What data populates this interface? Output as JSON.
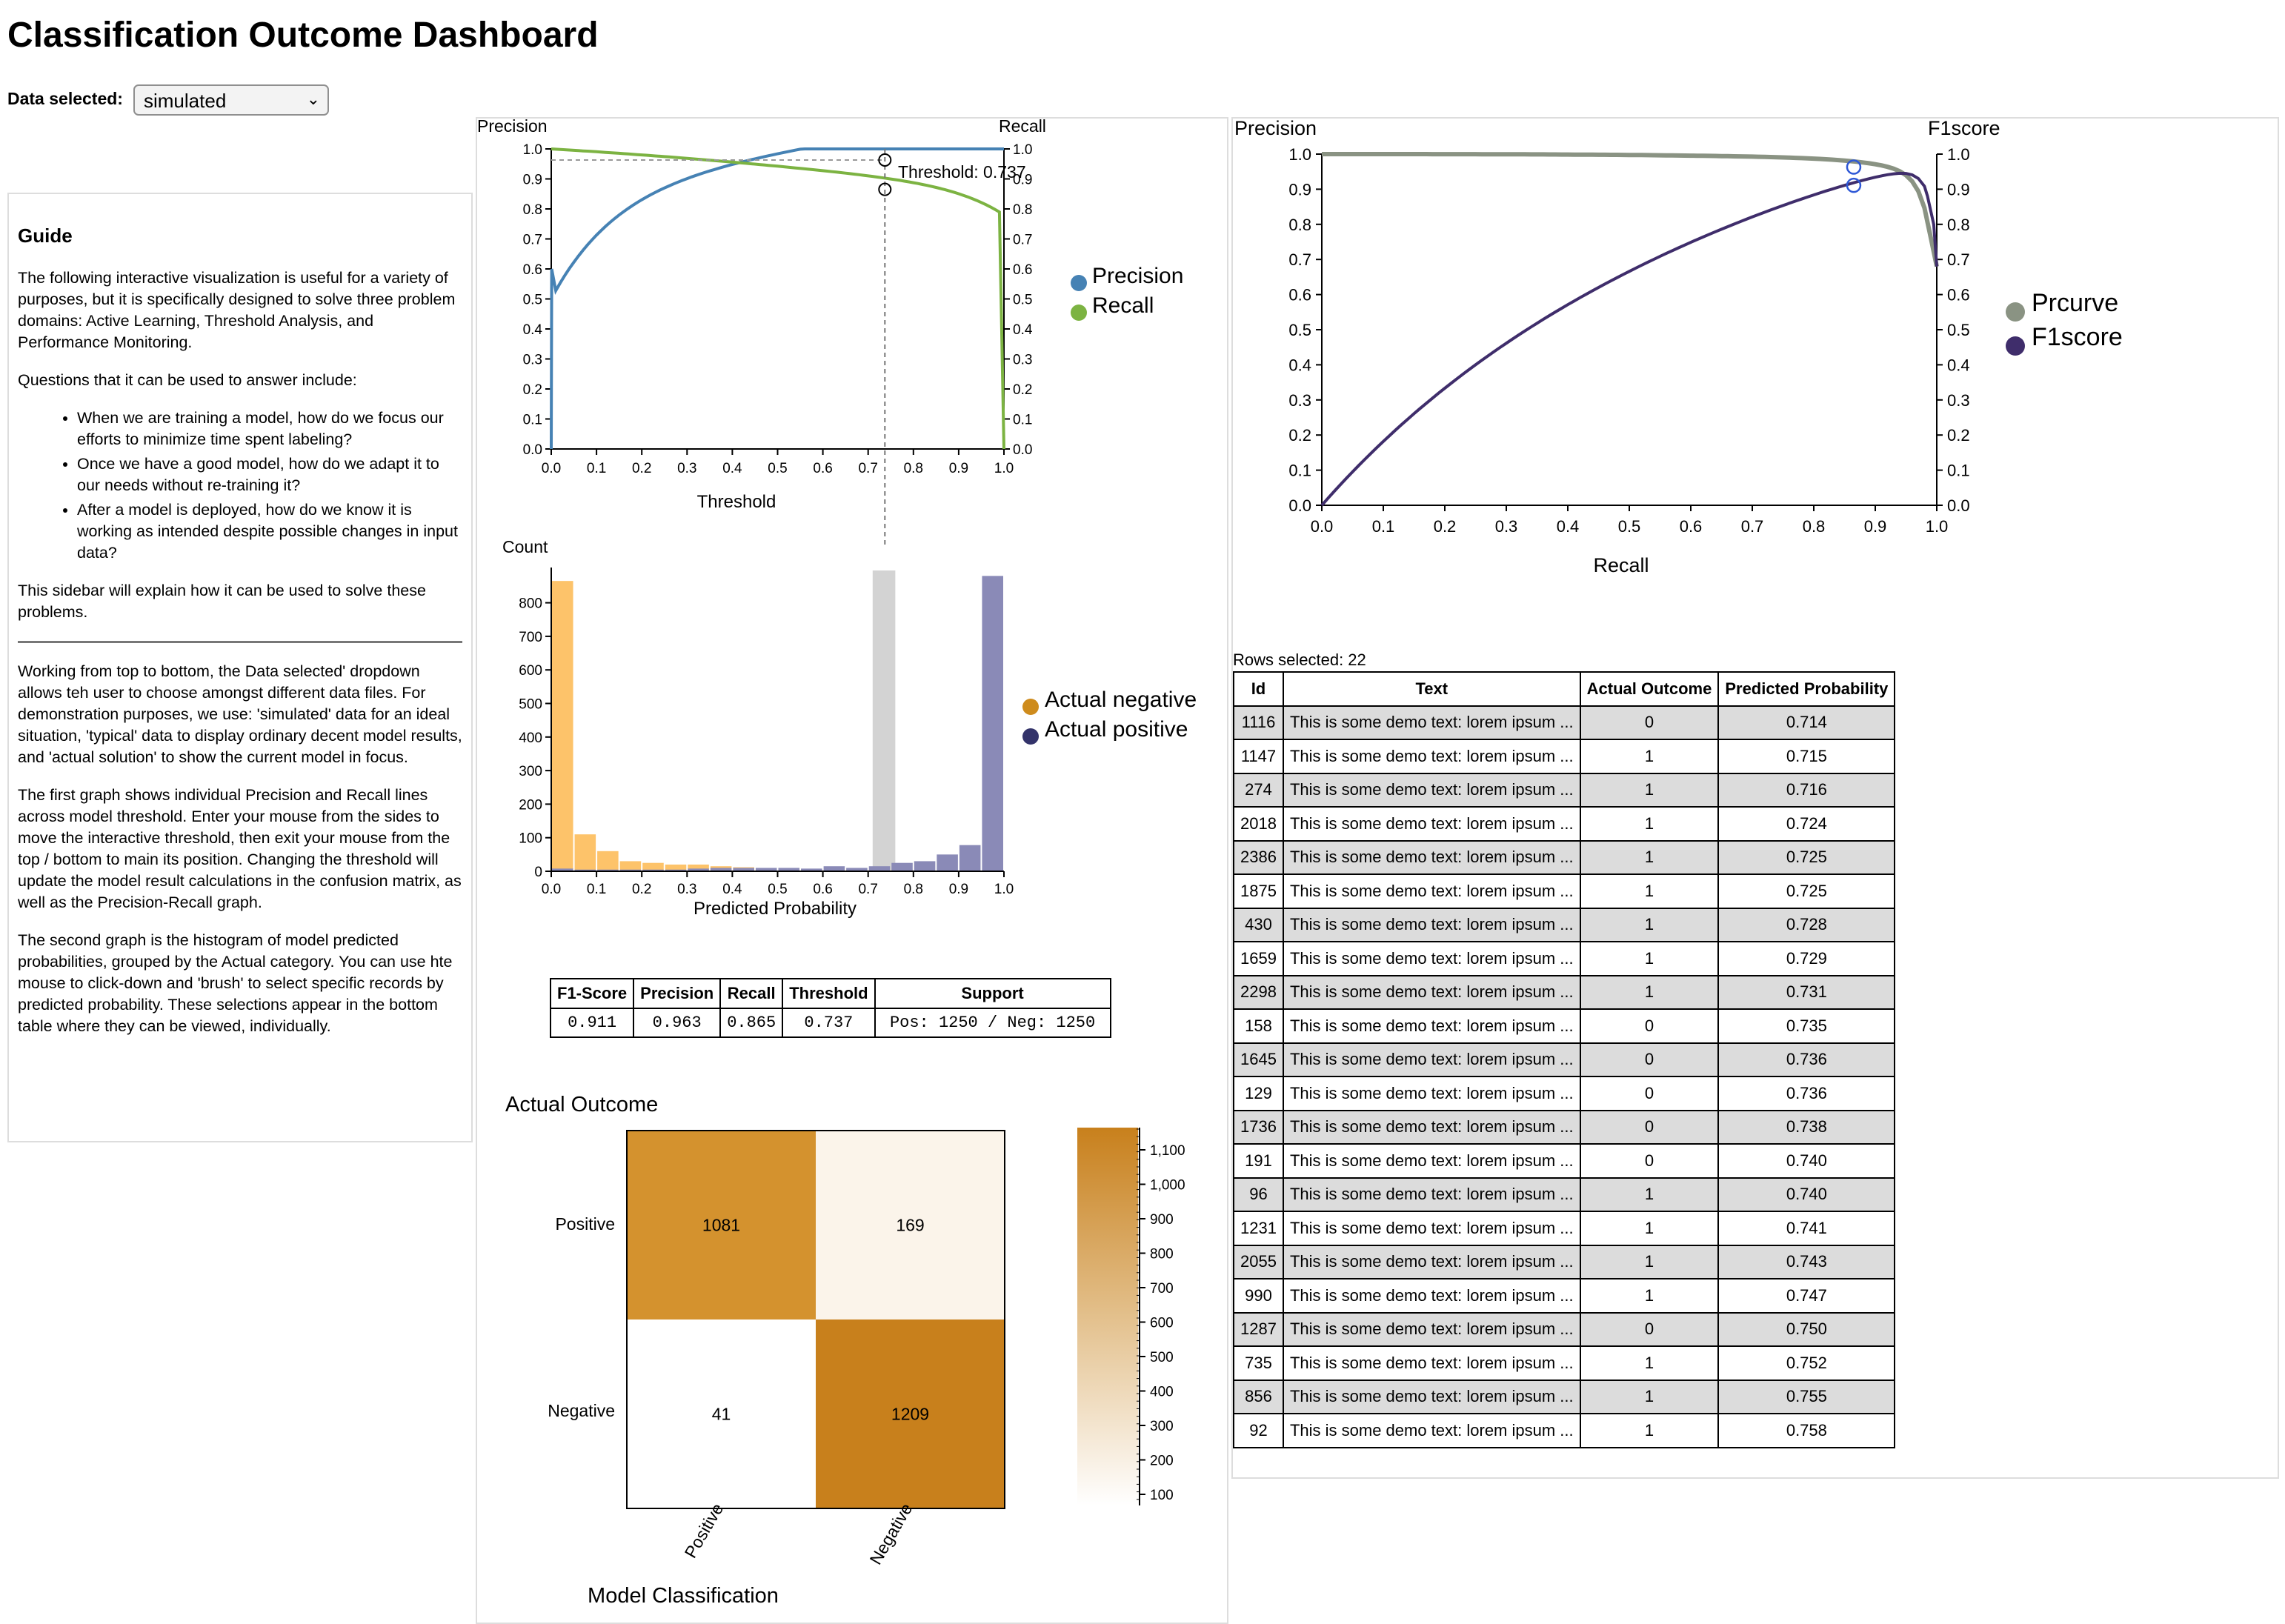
{
  "title": "Classification Outcome Dashboard",
  "data_select": {
    "label": "Data selected:",
    "value": "simulated"
  },
  "guide": {
    "heading": "Guide",
    "intro": "The following interactive visualization is useful for a variety of purposes, but it is specifically designed to solve three problem domains: Active Learning, Threshold Analysis, and Performance Monitoring.",
    "questions_intro": "Questions that it can be used to answer include:",
    "questions": [
      "When we are training a model, how do we focus our efforts to minimize time spent labeling?",
      "Once we have a good model, how do we adapt it to our needs without re-training it?",
      "After a model is deployed, how do we know it is working as intended despite possible changes in input data?"
    ],
    "sidebar_note": "This sidebar will explain how it can be used to solve these problems.",
    "p1": "Working from top to bottom, the Data selected' dropdown allows teh user to choose amongst different data files. For demonstration purposes, we use: 'simulated' data for an ideal situation, 'typical' data to display ordinary decent model results, and 'actual solution' to show the current model in focus.",
    "p2": "The first graph shows individual Precision and Recall lines across model threshold. Enter your mouse from the sides to move the interactive threshold, then exit your mouse from the top / bottom to main its position. Changing the threshold will update the model result calculations in the confusion matrix, as well as the Precision-Recall graph.",
    "p3": "The second graph is the histogram of model predicted probabilities, grouped by the Actual category. You can use hte mouse to click-down and 'brush' to select specific records by predicted probability. These selections appear in the bottom table where they can be viewed, individually."
  },
  "threshold_chart": {
    "ylabel_left": "Precision",
    "ylabel_right": "Recall",
    "xlabel": "Threshold",
    "ticks": [
      "0.0",
      "0.1",
      "0.2",
      "0.3",
      "0.4",
      "0.5",
      "0.6",
      "0.7",
      "0.8",
      "0.9",
      "1.0"
    ],
    "threshold_label": "Threshold: 0.737",
    "threshold": 0.737,
    "legend": [
      "Precision",
      "Recall"
    ],
    "colors": {
      "precision": "#4682b4",
      "recall": "#7cb342"
    }
  },
  "histogram": {
    "ylabel": "Count",
    "xlabel": "Predicted Probability",
    "yticks": [
      "0",
      "100",
      "200",
      "300",
      "400",
      "500",
      "600",
      "700",
      "800"
    ],
    "xticks": [
      "0.0",
      "0.1",
      "0.2",
      "0.3",
      "0.4",
      "0.5",
      "0.6",
      "0.7",
      "0.8",
      "0.9",
      "1.0"
    ],
    "legend": [
      "Actual negative",
      "Actual positive"
    ],
    "colors": {
      "negative": "#fdc36a",
      "positive": "#8a8ab7",
      "brush": "#d3d3d3"
    }
  },
  "metrics": {
    "headers": [
      "F1-Score",
      "Precision",
      "Recall",
      "Threshold",
      "Support"
    ],
    "values": [
      "0.911",
      "0.963",
      "0.865",
      "0.737",
      "Pos: 1250 / Neg: 1250"
    ]
  },
  "confusion": {
    "title": "Actual Outcome",
    "xlabel": "Model Classification",
    "row_labels": [
      "Positive",
      "Negative"
    ],
    "col_labels": [
      "Positive",
      "Negative"
    ],
    "cells": [
      [
        "1081",
        "169"
      ],
      [
        "41",
        "1209"
      ]
    ],
    "scale_ticks": [
      "1,100",
      "1,000",
      "900",
      "800",
      "700",
      "600",
      "500",
      "400",
      "300",
      "200",
      "100"
    ]
  },
  "pr_chart": {
    "ylabel_left": "Precision",
    "ylabel_right": "F1score",
    "xlabel": "Recall",
    "ticks": [
      "0.0",
      "0.1",
      "0.2",
      "0.3",
      "0.4",
      "0.5",
      "0.6",
      "0.7",
      "0.8",
      "0.9",
      "1.0"
    ],
    "legend": [
      "Prcurve",
      "F1score"
    ],
    "colors": {
      "prcurve": "#8a9383",
      "f1": "#3f2d6b",
      "marker": "#2e58d6"
    }
  },
  "rows_selected": "Rows selected: 22",
  "table": {
    "headers": [
      "Id",
      "Text",
      "Actual Outcome",
      "Predicted Probability"
    ],
    "rows": [
      [
        "1116",
        "This is some demo text: lorem ipsum ...",
        "0",
        "0.714"
      ],
      [
        "1147",
        "This is some demo text: lorem ipsum ...",
        "1",
        "0.715"
      ],
      [
        "274",
        "This is some demo text: lorem ipsum ...",
        "1",
        "0.716"
      ],
      [
        "2018",
        "This is some demo text: lorem ipsum ...",
        "1",
        "0.724"
      ],
      [
        "2386",
        "This is some demo text: lorem ipsum ...",
        "1",
        "0.725"
      ],
      [
        "1875",
        "This is some demo text: lorem ipsum ...",
        "1",
        "0.725"
      ],
      [
        "430",
        "This is some demo text: lorem ipsum ...",
        "1",
        "0.728"
      ],
      [
        "1659",
        "This is some demo text: lorem ipsum ...",
        "1",
        "0.729"
      ],
      [
        "2298",
        "This is some demo text: lorem ipsum ...",
        "1",
        "0.731"
      ],
      [
        "158",
        "This is some demo text: lorem ipsum ...",
        "0",
        "0.735"
      ],
      [
        "1645",
        "This is some demo text: lorem ipsum ...",
        "0",
        "0.736"
      ],
      [
        "129",
        "This is some demo text: lorem ipsum ...",
        "0",
        "0.736"
      ],
      [
        "1736",
        "This is some demo text: lorem ipsum ...",
        "0",
        "0.738"
      ],
      [
        "191",
        "This is some demo text: lorem ipsum ...",
        "0",
        "0.740"
      ],
      [
        "96",
        "This is some demo text: lorem ipsum ...",
        "1",
        "0.740"
      ],
      [
        "1231",
        "This is some demo text: lorem ipsum ...",
        "1",
        "0.741"
      ],
      [
        "2055",
        "This is some demo text: lorem ipsum ...",
        "1",
        "0.743"
      ],
      [
        "990",
        "This is some demo text: lorem ipsum ...",
        "1",
        "0.747"
      ],
      [
        "1287",
        "This is some demo text: lorem ipsum ...",
        "0",
        "0.750"
      ],
      [
        "735",
        "This is some demo text: lorem ipsum ...",
        "1",
        "0.752"
      ],
      [
        "856",
        "This is some demo text: lorem ipsum ...",
        "1",
        "0.755"
      ],
      [
        "92",
        "This is some demo text: lorem ipsum ...",
        "1",
        "0.758"
      ]
    ]
  }
}
